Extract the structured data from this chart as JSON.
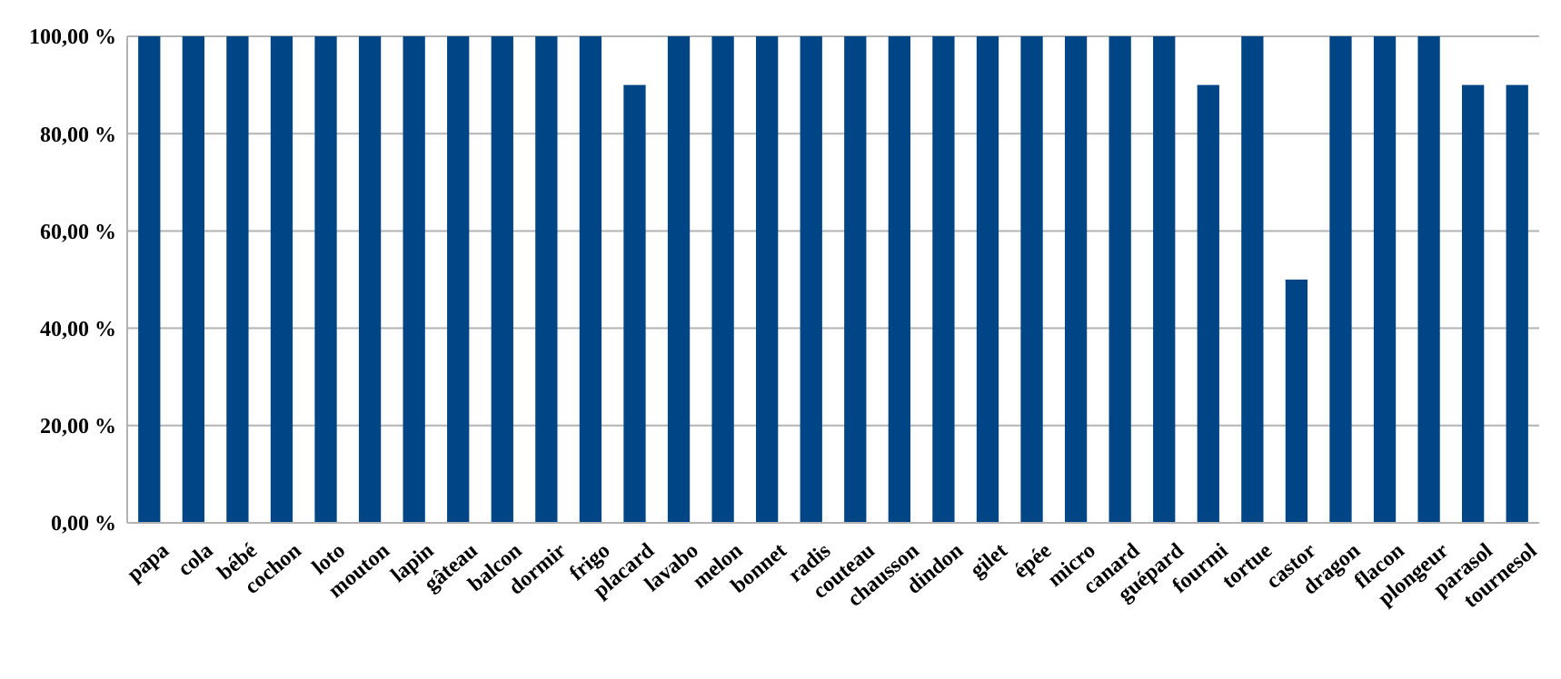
{
  "chart_data": {
    "type": "bar",
    "categories": [
      "papa",
      "cola",
      "bébé",
      "cochon",
      "loto",
      "mouton",
      "lapin",
      "gâteau",
      "balcon",
      "dormir",
      "frigo",
      "placard",
      "lavabo",
      "melon",
      "bonnet",
      "radis",
      "couteau",
      "chausson",
      "dindon",
      "gilet",
      "épée",
      "micro",
      "canard",
      "guépard",
      "fourmi",
      "tortue",
      "castor",
      "dragon",
      "flacon",
      "plongeur",
      "parasol",
      "tournesol"
    ],
    "values": [
      100,
      100,
      100,
      100,
      100,
      100,
      100,
      100,
      100,
      100,
      100,
      90,
      100,
      100,
      100,
      100,
      100,
      100,
      100,
      100,
      100,
      100,
      100,
      100,
      90,
      100,
      50,
      100,
      100,
      100,
      90,
      90
    ],
    "color": "#004586",
    "ylim": [
      0,
      100
    ],
    "yticks": [
      {
        "value": 0,
        "label": "0,00 %"
      },
      {
        "value": 20,
        "label": "20,00 %"
      },
      {
        "value": 40,
        "label": "40,00 %"
      },
      {
        "value": 60,
        "label": "60,00 %"
      },
      {
        "value": 80,
        "label": "80,00 %"
      },
      {
        "value": 100,
        "label": "100,00 %"
      }
    ],
    "grid": "y"
  }
}
